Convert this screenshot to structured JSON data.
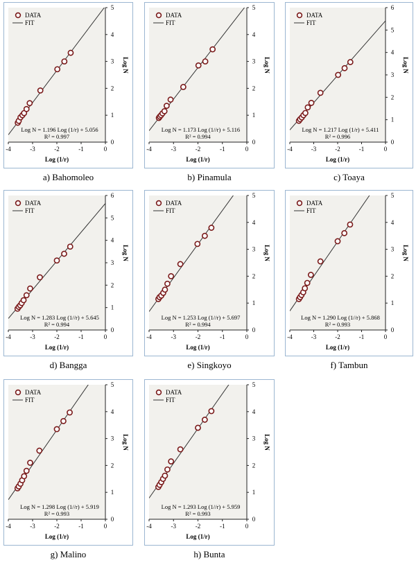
{
  "legend_labels": {
    "data": "DATA",
    "fit": "FIT"
  },
  "xlabel": "Log (1/r)",
  "ylabel": "Log N",
  "chart_data": [
    {
      "type": "scatter",
      "caption": "a) Bahomoleo",
      "title": "",
      "xlabel": "Log (1/r)",
      "ylabel": "Log N",
      "xlim": [
        -4,
        0
      ],
      "ylim": [
        0,
        5
      ],
      "xticks": [
        "-4",
        "-3",
        "-2",
        "-1",
        "0"
      ],
      "yticks": [
        "0",
        "1",
        "2",
        "3",
        "4",
        "5"
      ],
      "grid": false,
      "legend": "top-left",
      "equation": "Log N = 1.196 Log (1/r)  + 5.056",
      "r2": "R² = 0.997",
      "fit": {
        "slope": 1.196,
        "intercept": 5.056
      },
      "series": [
        {
          "name": "DATA",
          "type": "scatter",
          "x": [
            -3.61,
            -3.57,
            -3.5,
            -3.42,
            -3.35,
            -3.25,
            -3.12,
            -2.68,
            -1.98,
            -1.69,
            -1.43
          ],
          "y": [
            0.72,
            0.79,
            0.92,
            1.0,
            1.08,
            1.23,
            1.45,
            1.92,
            2.71,
            3.0,
            3.32
          ]
        },
        {
          "name": "FIT",
          "type": "line"
        }
      ]
    },
    {
      "type": "scatter",
      "caption": "b) Pinamula",
      "title": "",
      "xlabel": "Log (1/r)",
      "ylabel": "Log N",
      "xlim": [
        -4,
        0
      ],
      "ylim": [
        0,
        5
      ],
      "xticks": [
        "-4",
        "-3",
        "-2",
        "-1",
        "0"
      ],
      "yticks": [
        "0",
        "1",
        "2",
        "3",
        "4",
        "5"
      ],
      "grid": false,
      "legend": "top-left",
      "equation": "Log N = 1.173 Log (1//r)  + 5.116",
      "r2": "R² = 0.994",
      "fit": {
        "slope": 1.173,
        "intercept": 5.116
      },
      "series": [
        {
          "name": "DATA",
          "type": "scatter",
          "x": [
            -3.6,
            -3.56,
            -3.51,
            -3.45,
            -3.37,
            -3.28,
            -3.12,
            -2.6,
            -1.98,
            -1.7,
            -1.4
          ],
          "y": [
            0.9,
            0.95,
            1.0,
            1.07,
            1.15,
            1.35,
            1.58,
            2.05,
            2.85,
            3.0,
            3.45
          ]
        },
        {
          "name": "FIT",
          "type": "line"
        }
      ]
    },
    {
      "type": "scatter",
      "caption": "c) Toaya",
      "title": "",
      "xlabel": "Log (1/r)",
      "ylabel": "Log N",
      "xlim": [
        -4,
        0
      ],
      "ylim": [
        0,
        6
      ],
      "xticks": [
        "-4",
        "-3",
        "-2",
        "-1",
        "0"
      ],
      "yticks": [
        "0",
        "1",
        "2",
        "3",
        "4",
        "5",
        "6"
      ],
      "grid": false,
      "legend": "top-left",
      "equation": "Log N = 1.217 Log (1/r)  + 5.411",
      "r2": "R² = 0.996",
      "fit": {
        "slope": 1.217,
        "intercept": 5.411
      },
      "series": [
        {
          "name": "DATA",
          "type": "scatter",
          "x": [
            -3.62,
            -3.57,
            -3.5,
            -3.43,
            -3.35,
            -3.25,
            -3.1,
            -2.72,
            -1.98,
            -1.71,
            -1.47
          ],
          "y": [
            0.95,
            1.02,
            1.1,
            1.2,
            1.3,
            1.55,
            1.75,
            2.2,
            3.0,
            3.3,
            3.57
          ]
        },
        {
          "name": "FIT",
          "type": "line"
        }
      ]
    },
    {
      "type": "scatter",
      "caption": "d) Bangga",
      "title": "",
      "xlabel": "Log (1/r)",
      "ylabel": "Log N",
      "xlim": [
        -4,
        0
      ],
      "ylim": [
        0,
        6
      ],
      "xticks": [
        "-4",
        "-3",
        "-2",
        "-1",
        "0"
      ],
      "yticks": [
        "0",
        "1",
        "2",
        "3",
        "4",
        "5",
        "6"
      ],
      "grid": false,
      "legend": "top-left",
      "equation": "Log N = 1.283 Log (1//r)  + 5.645",
      "r2": "R² = 0.994",
      "fit": {
        "slope": 1.283,
        "intercept": 5.645
      },
      "series": [
        {
          "name": "DATA",
          "type": "scatter",
          "x": [
            -3.62,
            -3.57,
            -3.51,
            -3.45,
            -3.37,
            -3.25,
            -3.1,
            -2.7,
            -2.0,
            -1.7,
            -1.45
          ],
          "y": [
            0.95,
            1.03,
            1.1,
            1.2,
            1.33,
            1.55,
            1.85,
            2.35,
            3.1,
            3.4,
            3.72
          ]
        },
        {
          "name": "FIT",
          "type": "line"
        }
      ]
    },
    {
      "type": "scatter",
      "caption": "e) Singkoyo",
      "title": "",
      "xlabel": "Log (1/r)",
      "ylabel": "Log N",
      "xlim": [
        -4,
        0
      ],
      "ylim": [
        0,
        5
      ],
      "xticks": [
        "-4",
        "-3",
        "-2",
        "-1",
        "0"
      ],
      "yticks": [
        "0",
        "1",
        "2",
        "3",
        "4",
        "5"
      ],
      "grid": false,
      "legend": "top-left",
      "equation": "Log N = 1.253 Log (1//r)  + 5.697",
      "r2": "R² = 0.994",
      "fit": {
        "slope": 1.253,
        "intercept": 5.697
      },
      "series": [
        {
          "name": "DATA",
          "type": "scatter",
          "x": [
            -3.62,
            -3.57,
            -3.5,
            -3.42,
            -3.35,
            -3.25,
            -3.1,
            -2.72,
            -2.02,
            -1.72,
            -1.45
          ],
          "y": [
            1.15,
            1.22,
            1.28,
            1.38,
            1.5,
            1.72,
            2.0,
            2.45,
            3.2,
            3.5,
            3.8
          ]
        },
        {
          "name": "FIT",
          "type": "line"
        }
      ]
    },
    {
      "type": "scatter",
      "caption": "f) Tambun",
      "title": "",
      "xlabel": "Log (1/r)",
      "ylabel": "Log N",
      "xlim": [
        -4,
        0
      ],
      "ylim": [
        0,
        5
      ],
      "xticks": [
        "-4",
        "-3",
        "-2",
        "-1",
        "0"
      ],
      "yticks": [
        "0",
        "1",
        "2",
        "3",
        "4",
        "5"
      ],
      "grid": false,
      "legend": "top-left",
      "equation": "Log N = 1.290 Log (1//r)  + 5.868",
      "r2": "R² = 0.993",
      "fit": {
        "slope": 1.29,
        "intercept": 5.868
      },
      "series": [
        {
          "name": "DATA",
          "type": "scatter",
          "x": [
            -3.62,
            -3.57,
            -3.51,
            -3.44,
            -3.37,
            -3.27,
            -3.12,
            -2.72,
            -2.0,
            -1.72,
            -1.48
          ],
          "y": [
            1.15,
            1.22,
            1.3,
            1.4,
            1.55,
            1.75,
            2.05,
            2.55,
            3.3,
            3.6,
            3.92
          ]
        },
        {
          "name": "FIT",
          "type": "line"
        }
      ]
    },
    {
      "type": "scatter",
      "caption": "g) Malino",
      "title": "",
      "xlabel": "Log (1/r)",
      "ylabel": "Log N",
      "xlim": [
        -4,
        0
      ],
      "ylim": [
        0,
        5
      ],
      "xticks": [
        "-4",
        "-3",
        "-2",
        "-1",
        "0"
      ],
      "yticks": [
        "0",
        "1",
        "2",
        "3",
        "4",
        "5"
      ],
      "grid": false,
      "legend": "top-left",
      "equation": "Log N = 1.298 Log (1//r)  + 5.919",
      "r2": "R² = 0.993",
      "fit": {
        "slope": 1.298,
        "intercept": 5.919
      },
      "series": [
        {
          "name": "DATA",
          "type": "scatter",
          "x": [
            -3.62,
            -3.57,
            -3.5,
            -3.43,
            -3.35,
            -3.25,
            -3.1,
            -2.72,
            -2.0,
            -1.73,
            -1.47
          ],
          "y": [
            1.15,
            1.22,
            1.32,
            1.45,
            1.6,
            1.8,
            2.1,
            2.55,
            3.35,
            3.65,
            3.97
          ]
        },
        {
          "name": "FIT",
          "type": "line"
        }
      ]
    },
    {
      "type": "scatter",
      "caption": "h) Bunta",
      "title": "",
      "xlabel": "Log (1/r)",
      "ylabel": "Log N",
      "xlim": [
        -4,
        0
      ],
      "ylim": [
        0,
        5
      ],
      "xticks": [
        "-4",
        "-3",
        "-2",
        "-1",
        "0"
      ],
      "yticks": [
        "0",
        "1",
        "2",
        "3",
        "4",
        "5"
      ],
      "grid": false,
      "legend": "top-left",
      "equation": "Log N = 1.293 Log (1//r)  + 5.959",
      "r2": "R² = 0.993",
      "fit": {
        "slope": 1.293,
        "intercept": 5.959
      },
      "series": [
        {
          "name": "DATA",
          "type": "scatter",
          "x": [
            -3.62,
            -3.57,
            -3.5,
            -3.43,
            -3.35,
            -3.25,
            -3.1,
            -2.72,
            -2.0,
            -1.72,
            -1.45
          ],
          "y": [
            1.2,
            1.28,
            1.38,
            1.5,
            1.62,
            1.85,
            2.15,
            2.6,
            3.4,
            3.7,
            4.02
          ]
        },
        {
          "name": "FIT",
          "type": "line"
        }
      ]
    }
  ]
}
